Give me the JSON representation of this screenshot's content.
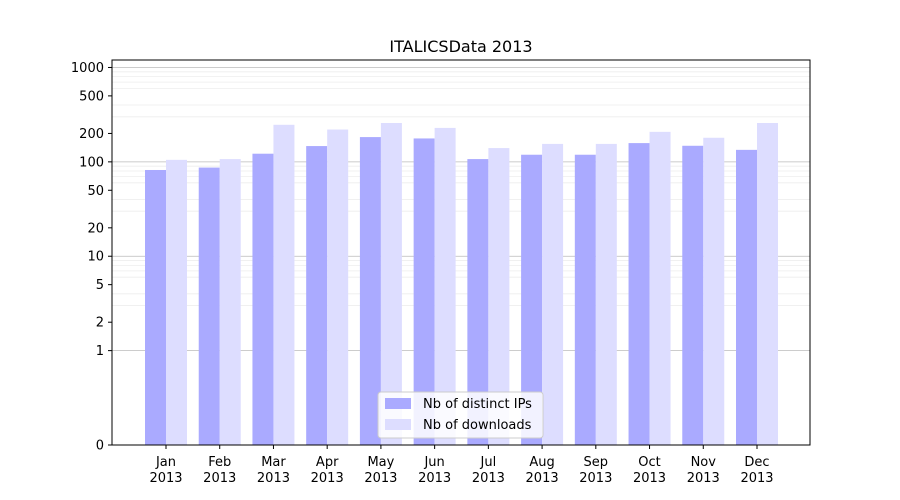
{
  "chart_data": {
    "type": "bar",
    "title": "ITALICSData 2013",
    "xlabel": "",
    "ylabel": "",
    "yscale": "symlog",
    "ylim": [
      0,
      1200
    ],
    "yticks": [
      0,
      1,
      2,
      5,
      10,
      20,
      50,
      100,
      200,
      500,
      1000
    ],
    "ytick_labels": [
      "0",
      "1",
      "2",
      "5",
      "10",
      "20",
      "50",
      "100",
      "200",
      "500",
      "1000"
    ],
    "grid": true,
    "legend_position": "bottom-center",
    "categories": [
      [
        "Jan",
        "2013"
      ],
      [
        "Feb",
        "2013"
      ],
      [
        "Mar",
        "2013"
      ],
      [
        "Apr",
        "2013"
      ],
      [
        "May",
        "2013"
      ],
      [
        "Jun",
        "2013"
      ],
      [
        "Jul",
        "2013"
      ],
      [
        "Aug",
        "2013"
      ],
      [
        "Sep",
        "2013"
      ],
      [
        "Oct",
        "2013"
      ],
      [
        "Nov",
        "2013"
      ],
      [
        "Dec",
        "2013"
      ]
    ],
    "series": [
      {
        "name": "Nb of distinct IPs",
        "color": "#aaaaff",
        "values": [
          82,
          87,
          122,
          147,
          183,
          177,
          107,
          119,
          119,
          158,
          148,
          134
        ]
      },
      {
        "name": "Nb of downloads",
        "color": "#ddddff",
        "values": [
          105,
          107,
          247,
          220,
          258,
          229,
          140,
          155,
          155,
          208,
          180,
          258
        ]
      }
    ]
  }
}
